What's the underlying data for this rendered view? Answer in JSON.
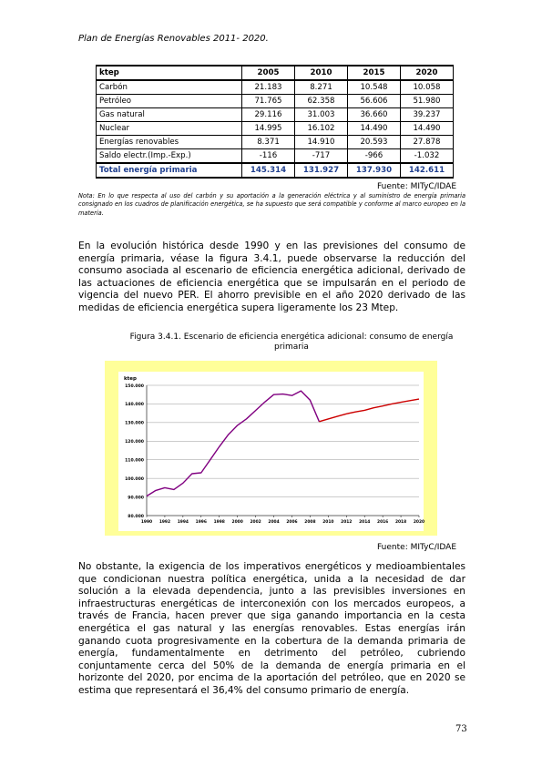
{
  "header": "Plan de Energías Renovables 2011- 2020.",
  "table": {
    "headers": [
      "ktep",
      "2005",
      "2010",
      "2015",
      "2020"
    ],
    "rows": [
      [
        "Carbón",
        "21.183",
        "8.271",
        "10.548",
        "10.058"
      ],
      [
        "Petróleo",
        "71.765",
        "62.358",
        "56.606",
        "51.980"
      ],
      [
        "Gas natural",
        "29.116",
        "31.003",
        "36.660",
        "39.237"
      ],
      [
        "Nuclear",
        "14.995",
        "16.102",
        "14.490",
        "14.490"
      ],
      [
        "Energías renovables",
        "8.371",
        "14.910",
        "20.593",
        "27.878"
      ],
      [
        "Saldo electr.(Imp.-Exp.)",
        "-116",
        "-717",
        "-966",
        "-1.032"
      ]
    ],
    "total": [
      "Total energía primaria",
      "145.314",
      "131.927",
      "137.930",
      "142.611"
    ]
  },
  "source_table": "Fuente: MITyC/IDAE",
  "note": "Nota: En lo que respecta al uso del carbón y su aportación a la generación eléctrica y al suministro de energía primaria consignado en los cuadros de planificación energética, se ha supuesto que será compatible y conforme al marco europeo en la materia.",
  "paragraph1": "En la evolución histórica desde 1990 y en las previsiones del consumo de energía primaria, véase la figura 3.4.1, puede observarse la reducción del consumo asociada al escenario de eficiencia energética adicional, derivado de las actuaciones de eficiencia energética que se impulsarán en el periodo de vigencia del nuevo PER. El ahorro previsible en el año 2020 derivado de las medidas de eficiencia energética supera ligeramente los 23 Mtep.",
  "figure_caption": "Figura 3.4.1. Escenario de eficiencia energética adicional: consumo de energía primaria",
  "source_figure": "Fuente: MITyC/IDAE",
  "paragraph2": "No obstante, la exigencia de los imperativos energéticos y medioambientales que condicionan nuestra política energética, unida a la necesidad de dar solución a la elevada dependencia, junto a las previsibles inversiones en infraestructuras energéticas de interconexión con los mercados europeos, a través de Francia, hacen prever que siga ganando importancia en la cesta energética el gas natural y las energías renovables. Estas energías irán ganando cuota progresivamente en la cobertura de la demanda primaria de energía, fundamentalmente en detrimento del petróleo, cubriendo conjuntamente cerca del 50% de la demanda de energía primaria en el horizonte del 2020, por encima de la aportación del petróleo, que en 2020 se estima que representará el 36,4% del consumo primario de energía.",
  "page_number": "73",
  "chart_data": {
    "type": "line",
    "ylabel": "ktep",
    "ylim": [
      80000,
      150000
    ],
    "yticks": [
      "80.000",
      "90.000",
      "100.000",
      "110.000",
      "120.000",
      "130.000",
      "140.000",
      "150.000"
    ],
    "xticks": [
      "1990",
      "1992",
      "1994",
      "1996",
      "1998",
      "2000",
      "2002",
      "2004",
      "2006",
      "2008",
      "2010",
      "2012",
      "2014",
      "2016",
      "2018",
      "2020"
    ],
    "grid": true,
    "background_color": "#ffff99",
    "series": [
      {
        "color": "#800080",
        "x": [
          1990,
          1991,
          1992,
          1993,
          1994,
          1995,
          1996,
          1997,
          1998,
          1999,
          2000,
          2001,
          2002,
          2003,
          2004,
          2005,
          2006,
          2007,
          2008,
          2009
        ],
        "y": [
          90500,
          93500,
          95000,
          94000,
          97500,
          102500,
          103000,
          110000,
          117000,
          123500,
          128500,
          132000,
          136500,
          141000,
          145000,
          145314,
          144500,
          147000,
          142000,
          130500
        ]
      },
      {
        "color": "#cc0000",
        "x": [
          2009,
          2010,
          2011,
          2012,
          2013,
          2014,
          2015,
          2016,
          2017,
          2018,
          2019,
          2020
        ],
        "y": [
          130500,
          131927,
          133300,
          134700,
          135700,
          136600,
          137930,
          138900,
          140000,
          140900,
          141800,
          142611
        ]
      }
    ]
  }
}
